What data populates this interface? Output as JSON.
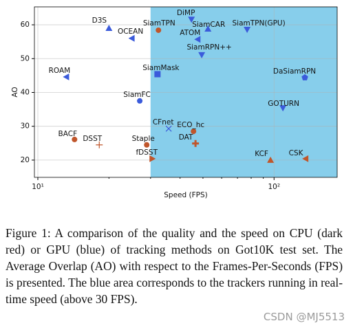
{
  "chart_data": {
    "type": "scatter",
    "xlabel": "Speed (FPS)",
    "ylabel": "AO",
    "log_x": true,
    "xlim": [
      9.67,
      185
    ],
    "ylim": [
      14.9,
      65.3
    ],
    "xticks": [
      {
        "value": 10,
        "label": "10¹"
      },
      {
        "value": 100,
        "label": "10²"
      }
    ],
    "yticks": [
      20,
      30,
      40,
      50,
      60
    ],
    "grid": true,
    "highlight": {
      "x_from": 30,
      "color": "#87ceeb"
    },
    "points": [
      {
        "label": "D3S",
        "x": 20,
        "y": 59,
        "color": "#3b5bdb",
        "marker": "triangle-up"
      },
      {
        "label": "OCEAN",
        "x": 25,
        "y": 56,
        "color": "#3b5bdb",
        "marker": "triangle-left"
      },
      {
        "label": "ROAM",
        "x": 13.2,
        "y": 44.6,
        "color": "#3b5bdb",
        "marker": "triangle-left"
      },
      {
        "label": "BACF",
        "x": 14.3,
        "y": 26.1,
        "color": "#c0562b",
        "marker": "circle"
      },
      {
        "label": "DSST",
        "x": 18.2,
        "y": 24.5,
        "color": "#c0562b",
        "marker": "plus"
      },
      {
        "label": "SiamFC",
        "x": 27,
        "y": 37.5,
        "color": "#3b5bdb",
        "marker": "circle"
      },
      {
        "label": "Staple",
        "x": 28.9,
        "y": 24.5,
        "color": "#c0562b",
        "marker": "circle"
      },
      {
        "label": "fDSST",
        "x": 30.5,
        "y": 20.4,
        "color": "#c0562b",
        "marker": "triangle-right"
      },
      {
        "label": "SiamTPN",
        "x": 32.4,
        "y": 58.4,
        "color": "#c0562b",
        "marker": "circle"
      },
      {
        "label": "SiamMask",
        "x": 32.1,
        "y": 45.4,
        "color": "#3b5bdb",
        "marker": "square"
      },
      {
        "label": "DiMP",
        "x": 44.7,
        "y": 61.6,
        "color": "#3b5bdb",
        "marker": "triangle-down"
      },
      {
        "label": "SiamCAR",
        "x": 52.5,
        "y": 58.8,
        "color": "#3b5bdb",
        "marker": "triangle-up"
      },
      {
        "label": "ATOM",
        "x": 47.5,
        "y": 55.7,
        "color": "#3b5bdb",
        "marker": "triangle-left"
      },
      {
        "label": "SiamRPN++",
        "x": 49.4,
        "y": 51.1,
        "color": "#3b5bdb",
        "marker": "triangle-down"
      },
      {
        "label": "SiamTPN(GPU)",
        "x": 76.9,
        "y": 58.6,
        "color": "#3b5bdb",
        "marker": "triangle-down"
      },
      {
        "label": "CFnet",
        "x": 35.8,
        "y": 29.3,
        "color": "#3b5bdb",
        "marker": "x"
      },
      {
        "label": "ECO_hc",
        "x": 45.6,
        "y": 28.5,
        "color": "#c0562b",
        "marker": "circle"
      },
      {
        "label": "DAT",
        "x": 46.5,
        "y": 24.9,
        "color": "#c0562b",
        "marker": "plus-bold"
      },
      {
        "label": "DaSiamRPN",
        "x": 135,
        "y": 44.4,
        "color": "#3b5bdb",
        "marker": "pentagon"
      },
      {
        "label": "GOTURN",
        "x": 109,
        "y": 35.4,
        "color": "#3b5bdb",
        "marker": "triangle-down"
      },
      {
        "label": "KCF",
        "x": 96.6,
        "y": 20,
        "color": "#c0562b",
        "marker": "triangle-up"
      },
      {
        "label": "CSK",
        "x": 136,
        "y": 20.4,
        "color": "#c0562b",
        "marker": "triangle-left"
      }
    ]
  },
  "caption": "Figure 1: A comparison of the quality and the speed on CPU (dark red) or GPU (blue) of tracking methods on Got10K test set. The Average Overlap (AO) with respect to the Frames-Per-Seconds (FPS) is presented. The blue area corresponds to the trackers running in real-time speed (above 30 FPS).",
  "watermark": "CSDN @MJ5513"
}
